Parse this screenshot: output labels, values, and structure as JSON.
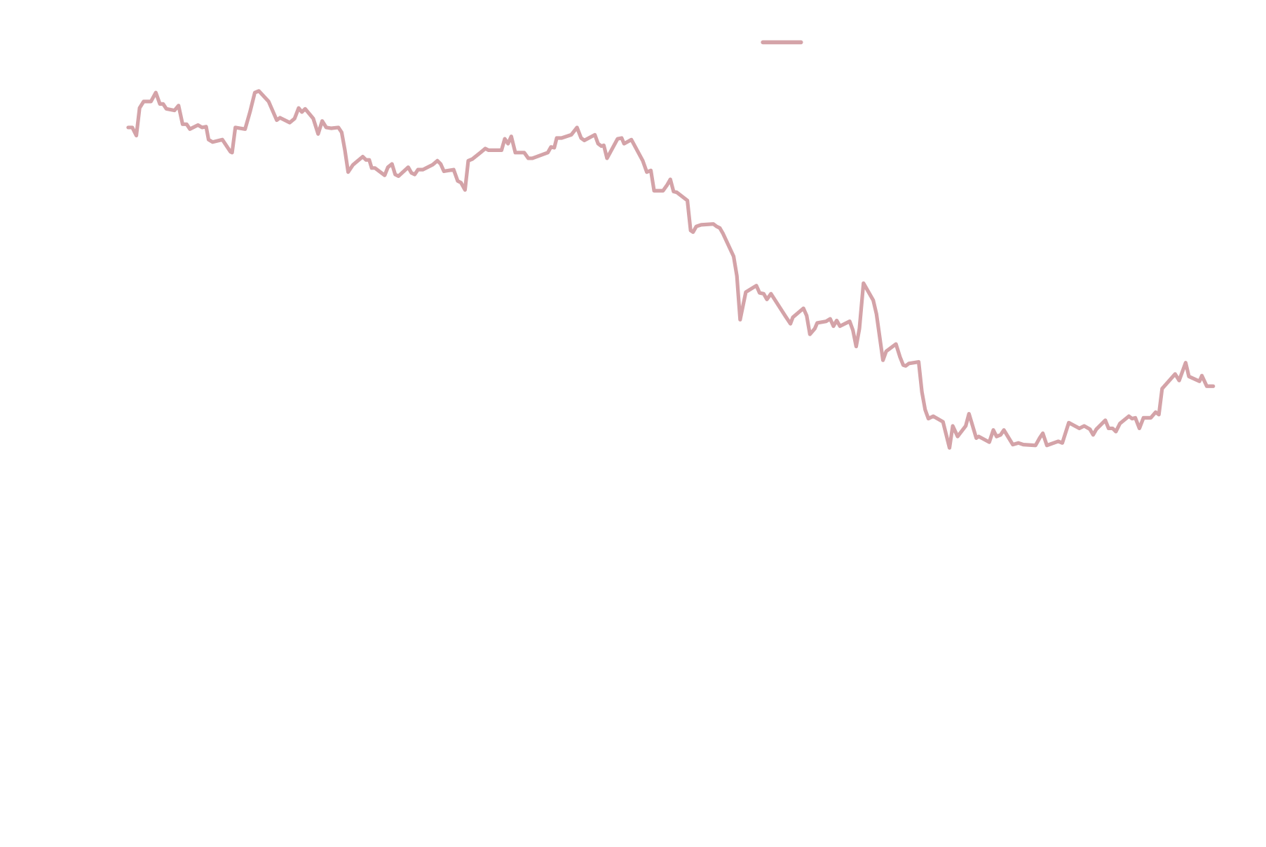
{
  "chart_data": {
    "type": "line",
    "xlim": [
      0,
      1337
    ],
    "ylim": [
      0,
      1040
    ],
    "x": [
      0,
      5,
      10,
      14,
      19,
      28,
      34,
      39,
      43,
      47,
      57,
      62,
      67,
      72,
      76,
      86,
      91,
      96,
      99,
      104,
      116,
      126,
      128,
      132,
      144,
      150,
      156,
      161,
      173,
      183,
      187,
      199,
      205,
      210,
      214,
      218,
      228,
      234,
      239,
      244,
      250,
      259,
      263,
      267,
      271,
      277,
      289,
      293,
      297,
      300,
      304,
      316,
      320,
      325,
      329,
      333,
      345,
      349,
      353,
      357,
      363,
      375,
      381,
      385,
      389,
      401,
      406,
      410,
      415,
      419,
      424,
      434,
      440,
      444,
      460,
      464,
      468,
      472,
      477,
      488,
      493,
      498,
      517,
      521,
      525,
      528,
      534,
      546,
      553,
      558,
      562,
      575,
      579,
      583,
      586,
      590,
      603,
      608,
      611,
      620,
      634,
      639,
      644,
      648,
      659,
      664,
      668,
      672,
      676,
      689,
      693,
      696,
      700,
      706,
      721,
      725,
      729,
      733,
      746,
      750,
      754,
      761,
      774,
      778,
      783,
      787,
      792,
      810,
      816,
      819,
      832,
      836,
      840,
      846,
      849,
      860,
      865,
      869,
      873,
      877,
      889,
      893,
      897,
      901,
      906,
      918,
      922,
      930,
      934,
      946,
      951,
      955,
      958,
      962,
      974,
      978,
      982,
      986,
      992,
      1004,
      1012,
      1016,
      1022,
      1032,
      1036,
      1039,
      1045,
      1048,
      1061,
      1066,
      1070,
      1075,
      1079,
      1090,
      1097,
      1103,
      1118,
      1123,
      1127,
      1132,
      1146,
      1151,
      1159,
      1172,
      1178,
      1185,
      1189,
      1193,
      1204,
      1208,
      1213,
      1217,
      1222,
      1233,
      1237,
      1241,
      1246,
      1251,
      1260,
      1266,
      1270,
      1274,
      1290,
      1295,
      1303,
      1307,
      1320,
      1323,
      1329,
      1337
    ],
    "series": [
      {
        "color": "#d4a3a8",
        "values": [
          883,
          883,
          873,
          907,
          915,
          915,
          926,
          912,
          912,
          906,
          904,
          910,
          887,
          887,
          881,
          886,
          883,
          884,
          868,
          865,
          868,
          853,
          852,
          883,
          881,
          902,
          926,
          928,
          915,
          892,
          895,
          889,
          894,
          907,
          902,
          906,
          894,
          875,
          891,
          883,
          882,
          883,
          877,
          855,
          828,
          837,
          847,
          843,
          843,
          833,
          833,
          824,
          834,
          838,
          825,
          823,
          834,
          827,
          825,
          831,
          831,
          837,
          842,
          838,
          829,
          831,
          817,
          815,
          806,
          842,
          844,
          852,
          857,
          855,
          855,
          869,
          863,
          872,
          852,
          852,
          845,
          845,
          852,
          859,
          858,
          870,
          870,
          874,
          883,
          870,
          867,
          874,
          863,
          860,
          861,
          845,
          869,
          870,
          863,
          868,
          842,
          828,
          830,
          805,
          805,
          812,
          819,
          804,
          803,
          793,
          756,
          754,
          761,
          763,
          764,
          761,
          759,
          752,
          724,
          700,
          646,
          680,
          688,
          679,
          678,
          671,
          678,
          650,
          641,
          649,
          660,
          651,
          628,
          635,
          642,
          644,
          647,
          638,
          645,
          638,
          644,
          633,
          613,
          635,
          691,
          670,
          653,
          596,
          607,
          616,
          600,
          590,
          589,
          592,
          594,
          557,
          535,
          524,
          527,
          520,
          488,
          515,
          502,
          515,
          530,
          520,
          500,
          502,
          495,
          510,
          502,
          504,
          510,
          492,
          494,
          492,
          491,
          500,
          506,
          491,
          496,
          494,
          519,
          512,
          515,
          511,
          504,
          511,
          522,
          512,
          512,
          508,
          518,
          527,
          524,
          525,
          512,
          525,
          525,
          532,
          529,
          561,
          579,
          571,
          593,
          576,
          570,
          577,
          564,
          564
        ]
      }
    ]
  }
}
